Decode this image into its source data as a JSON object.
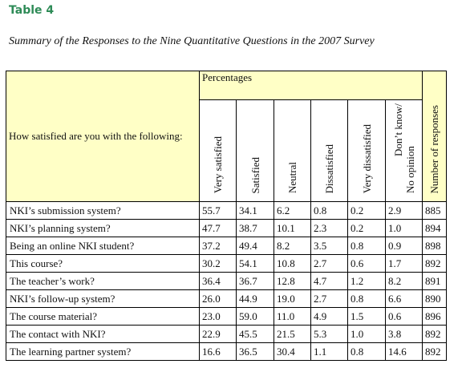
{
  "table_label": "Table 4",
  "caption": "Summary of the Responses to the Nine Quantitative Questions in the 2007 Survey",
  "header": {
    "question": "How satisfied are you with the following:",
    "percentages": "Percentages",
    "columns": [
      "Very satisfied",
      "Satisfied",
      "Neutral",
      "Dissatisfied",
      "Very dissatisfied"
    ],
    "dont_know_line1": "Don’t know/",
    "dont_know_line2": "No opinion",
    "responses": "Number of responses"
  },
  "rows": [
    {
      "label": "NKI’s submission system?",
      "values": [
        "55.7",
        "34.1",
        "6.2",
        "0.8",
        "0.2",
        "2.9",
        "885"
      ]
    },
    {
      "label": "NKI’s planning system?",
      "values": [
        "47.7",
        "38.7",
        "10.1",
        "2.3",
        "0.2",
        "1.0",
        "894"
      ]
    },
    {
      "label": "Being an online NKI student?",
      "values": [
        "37.2",
        "49.4",
        "8.2",
        "3.5",
        "0.8",
        "0.9",
        "898"
      ]
    },
    {
      "label": "This course?",
      "values": [
        "30.2",
        "54.1",
        "10.8",
        "2.7",
        "0.6",
        "1.7",
        "892"
      ]
    },
    {
      "label": "The teacher’s work?",
      "values": [
        "36.4",
        "36.7",
        "12.8",
        "4.7",
        "1.2",
        "8.2",
        "891"
      ]
    },
    {
      "label": "NKI’s follow-up system?",
      "values": [
        "26.0",
        "44.9",
        "19.0",
        "2.7",
        "0.8",
        "6.6",
        "890"
      ]
    },
    {
      "label": "The course material?",
      "values": [
        "23.0",
        "59.0",
        "11.0",
        "4.9",
        "1.5",
        "0.6",
        "896"
      ]
    },
    {
      "label": "The contact with NKI?",
      "values": [
        "22.9",
        "45.5",
        "21.5",
        "5.3",
        "1.0",
        "3.8",
        "892"
      ]
    },
    {
      "label": "The learning partner system?",
      "values": [
        "16.6",
        "36.5",
        "30.4",
        "1.1",
        "0.8",
        "14.6",
        "892"
      ]
    }
  ]
}
